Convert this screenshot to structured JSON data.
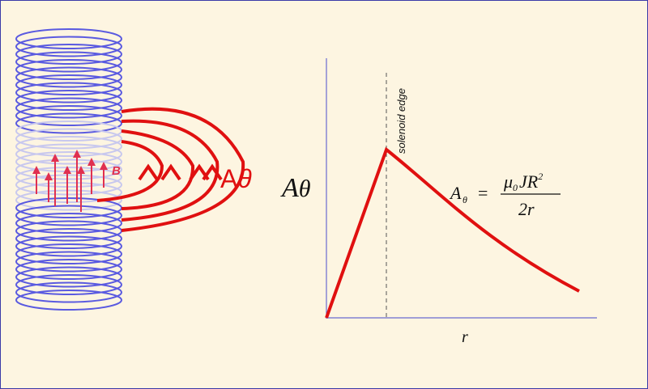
{
  "diagram": {
    "field_label": "B",
    "coil_label": {
      "symbol": "A",
      "subscript": "θ"
    },
    "plot": {
      "y_axis_label": {
        "symbol": "A",
        "subscript": "θ"
      },
      "x_axis_label": "r",
      "edge_label": "solenoid edge",
      "formula": {
        "lhs": "A",
        "lhs_sub": "θ",
        "equals": "=",
        "num_mu": "μ",
        "num_mu_sub": "0",
        "num_rest": "JR",
        "num_sup": "2",
        "denominator": "2r"
      }
    }
  }
}
